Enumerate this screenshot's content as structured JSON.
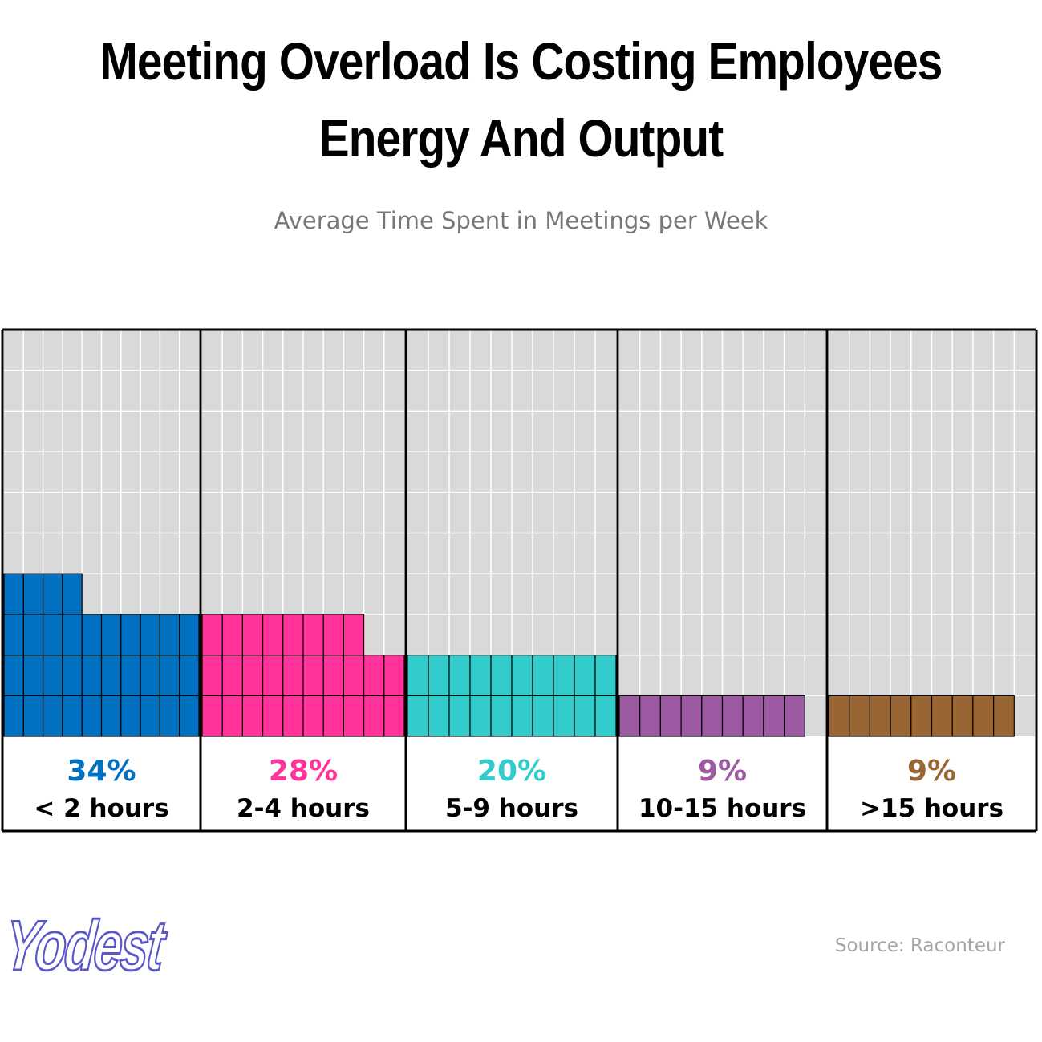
{
  "title_line1": "Meeting Overload Is Costing Employees",
  "title_line2": "Energy And Output",
  "subtitle": "Average Time Spent in Meetings per Week",
  "source": "Source: Raconteur",
  "logo": "Yodest",
  "chart_data": {
    "type": "waffle",
    "title": "Meeting Overload Is Costing Employees Energy And Output",
    "subtitle": "Average Time Spent in Meetings per Week",
    "categories": [
      "< 2 hours",
      "2-4 hours",
      "5-9 hours",
      "10-15 hours",
      ">15 hours"
    ],
    "values": [
      34,
      28,
      20,
      9,
      9
    ],
    "value_labels": [
      "34%",
      "28%",
      "20%",
      "9%",
      "9%"
    ],
    "colors": [
      "#0070c0",
      "#ff3399",
      "#33cccc",
      "#9b5aa2",
      "#996633"
    ],
    "units": "%",
    "grid": {
      "rows": 10,
      "cols": 10,
      "units_per_cell": 1
    }
  }
}
